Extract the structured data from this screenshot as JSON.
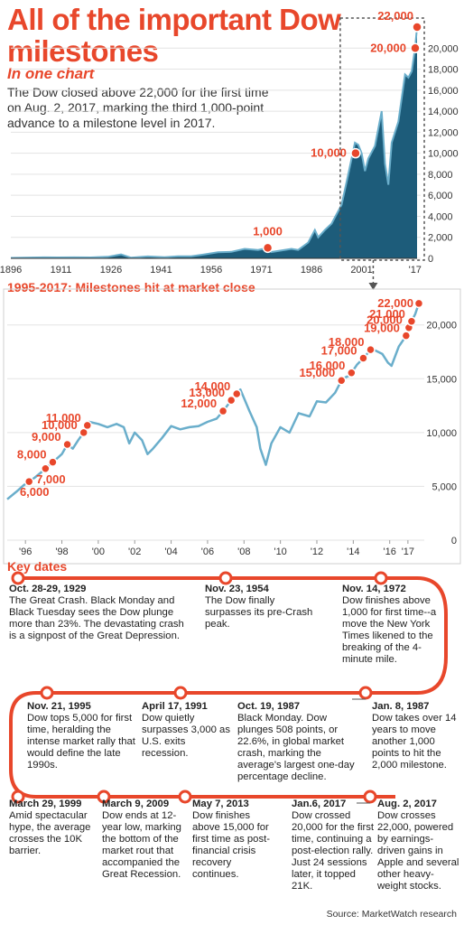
{
  "header": {
    "title": "All of the important Dow milestones",
    "subtitle": "In one chart",
    "description": "The Dow closed above 22,000 for the first time on Aug. 2, 2017, marking the third 1,000-point advance to a milestone level in 2017."
  },
  "colors": {
    "accent": "#e8472b",
    "area_fill": "#1d5c7a",
    "line": "#6aaecb",
    "highlight_box": "#555555"
  },
  "chart_data": [
    {
      "type": "area",
      "title": "",
      "x_ticks": [
        "1896",
        "1911",
        "1926",
        "1941",
        "1956",
        "1971",
        "1986",
        "2001",
        "'17"
      ],
      "y_ticks": [
        "0",
        "2,000",
        "4,000",
        "6,000",
        "8,000",
        "10,000",
        "12,000",
        "14,000",
        "16,000",
        "18,000",
        "20,000"
      ],
      "ylim": [
        0,
        22000
      ],
      "xlim": [
        1896,
        2017.6
      ],
      "series": [
        {
          "x": [
            1896,
            1900,
            1906,
            1910,
            1915,
            1920,
            1925,
            1929,
            1932,
            1937,
            1942,
            1946,
            1950,
            1954,
            1958,
            1962,
            1966,
            1970,
            1973,
            1974,
            1980,
            1982,
            1985,
            1987,
            1988,
            1990,
            1992,
            1995,
            1997,
            1999,
            2000,
            2001,
            2002,
            2003,
            2005,
            2007,
            2008,
            2009,
            2010,
            2012,
            2014,
            2015,
            2016,
            2017,
            2017.6
          ],
          "values": [
            40,
            65,
            95,
            85,
            95,
            90,
            150,
            380,
            60,
            180,
            110,
            190,
            200,
            380,
            580,
            620,
            900,
            800,
            1000,
            600,
            900,
            800,
            1500,
            2700,
            2000,
            2700,
            3300,
            5100,
            8000,
            11000,
            10800,
            10000,
            8300,
            9500,
            10700,
            14000,
            9000,
            7000,
            11000,
            13000,
            17500,
            17200,
            17800,
            20000,
            22000
          ]
        }
      ],
      "milestones": [
        {
          "label": "1,000",
          "x": 1972.9,
          "y": 1000
        },
        {
          "label": "10,000",
          "x": 1999.2,
          "y": 10000
        },
        {
          "label": "20,000",
          "x": 2017.05,
          "y": 20000
        },
        {
          "label": "22,000",
          "x": 2017.6,
          "y": 22000
        }
      ]
    },
    {
      "type": "line",
      "title": "1995-2017: Milestones hit at market close",
      "x_ticks": [
        "'96",
        "'98",
        "'00",
        "'02",
        "'04",
        "'06",
        "'08",
        "'10",
        "'12",
        "'14",
        "'16",
        "'17"
      ],
      "y_ticks": [
        "0",
        "5,000",
        "10,000",
        "15,000",
        "20,000"
      ],
      "ylim": [
        0,
        23000
      ],
      "xlim": [
        1995,
        2017.7
      ],
      "series": [
        {
          "x": [
            1995.0,
            1995.5,
            1995.9,
            1996.5,
            1997.0,
            1997.4,
            1997.8,
            1998.0,
            1998.3,
            1998.6,
            1998.9,
            1999.2,
            1999.5,
            2000.0,
            2000.5,
            2001.0,
            2001.4,
            2001.7,
            2002.0,
            2002.4,
            2002.7,
            2003.0,
            2003.5,
            2004.0,
            2004.5,
            2005.0,
            2005.5,
            2006.0,
            2006.5,
            2006.9,
            2007.3,
            2007.8,
            2008.3,
            2008.7,
            2008.9,
            2009.2,
            2009.5,
            2010.0,
            2010.5,
            2011.0,
            2011.6,
            2012.0,
            2012.5,
            2013.0,
            2013.4,
            2013.8,
            2014.2,
            2014.6,
            2015.0,
            2015.6,
            2015.9,
            2016.1,
            2016.5,
            2016.9,
            2017.1,
            2017.4,
            2017.6
          ],
          "values": [
            3800,
            4500,
            5100,
            5800,
            6500,
            7100,
            7700,
            8000,
            8900,
            8500,
            9300,
            10000,
            11000,
            10800,
            10500,
            10800,
            10500,
            9000,
            10000,
            9300,
            8000,
            8500,
            9500,
            10600,
            10300,
            10500,
            10600,
            11000,
            11300,
            12100,
            13000,
            14000,
            12000,
            10500,
            8500,
            7000,
            9000,
            10500,
            10000,
            11800,
            11500,
            12900,
            12800,
            13700,
            15000,
            15300,
            16300,
            17000,
            17800,
            17300,
            16500,
            16200,
            18000,
            19000,
            20000,
            21000,
            22000
          ]
        }
      ],
      "milestones": [
        {
          "label": "6,000",
          "x": 1996.2,
          "y": 6000
        },
        {
          "label": "7,000",
          "x": 1997.1,
          "y": 7000
        },
        {
          "label": "8,000",
          "x": 1997.5,
          "y": 8000
        },
        {
          "label": "9,000",
          "x": 1998.3,
          "y": 9000
        },
        {
          "label": "10,000",
          "x": 1999.2,
          "y": 10000
        },
        {
          "label": "11,000",
          "x": 1999.4,
          "y": 11000
        },
        {
          "label": "12,000",
          "x": 2006.85,
          "y": 12000
        },
        {
          "label": "13,000",
          "x": 2007.3,
          "y": 13000
        },
        {
          "label": "14,000",
          "x": 2007.6,
          "y": 14000
        },
        {
          "label": "15,000",
          "x": 2013.35,
          "y": 15000
        },
        {
          "label": "16,000",
          "x": 2013.9,
          "y": 16000
        },
        {
          "label": "17,000",
          "x": 2014.55,
          "y": 17000
        },
        {
          "label": "18,000",
          "x": 2014.95,
          "y": 18000
        },
        {
          "label": "19,000",
          "x": 2016.9,
          "y": 19000
        },
        {
          "label": "20,000",
          "x": 2017.05,
          "y": 20000
        },
        {
          "label": "21,000",
          "x": 2017.2,
          "y": 21000
        },
        {
          "label": "22,000",
          "x": 2017.6,
          "y": 22000
        }
      ]
    }
  ],
  "key_dates": {
    "title": "Key dates",
    "events": [
      {
        "date": "Oct. 28-29, 1929",
        "text": "The Great Crash. Black Monday and Black Tuesday sees the Dow plunge more than 23%. The devastating crash is a signpost of the Great Depression."
      },
      {
        "date": "Nov. 23, 1954",
        "text": "The Dow finally surpasses its pre-Crash peak."
      },
      {
        "date": "Nov. 14, 1972",
        "text": "Dow finishes above 1,000 for first time--a move the New York Times likened to the breaking of the 4-minute mile."
      },
      {
        "date": "Nov. 21, 1995",
        "text": "Dow tops 5,000 for first time, heralding the intense market rally that would define the late 1990s."
      },
      {
        "date": "April 17, 1991",
        "text": "Dow quietly surpasses 3,000 as U.S. exits recession."
      },
      {
        "date": "Oct. 19, 1987",
        "text": "Black Monday. Dow plunges 508 points, or 22.6%, in global market crash, marking the average's largest one-day percentage decline."
      },
      {
        "date": "Jan. 8, 1987",
        "text": "Dow takes over 14 years to move another 1,000 points to hit the 2,000 milestone."
      },
      {
        "date": "March 29, 1999",
        "text": "Amid spectacular hype, the average crosses the 10K barrier."
      },
      {
        "date": "March 9, 2009",
        "text": "Dow ends at 12-year low, marking the bottom of the market rout that accompanied the Great Recession."
      },
      {
        "date": "May 7, 2013",
        "text": "Dow finishes above 15,000 for first time as post-financial crisis recovery continues."
      },
      {
        "date": "Jan.6, 2017",
        "text": "Dow crossed 20,000 for the first time, continuing a post-election rally. Just 24 sessions later, it topped 21K."
      },
      {
        "date": "Aug. 2, 2017",
        "text": "Dow crosses 22,000, powered by earnings-driven gains in Apple and several other heavy-weight stocks."
      }
    ]
  },
  "source": "Source: MarketWatch research"
}
